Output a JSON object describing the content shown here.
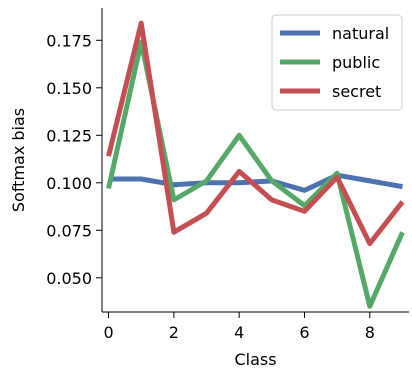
{
  "chart_data": {
    "type": "line",
    "xlabel": "Class",
    "ylabel": "Softmax bias",
    "xlim": [
      -0.2,
      9.2
    ],
    "ylim": [
      0.032,
      0.192
    ],
    "x": [
      0,
      1,
      2,
      3,
      4,
      5,
      6,
      7,
      8,
      9
    ],
    "xticks": [
      "0",
      "2",
      "4",
      "6",
      "8"
    ],
    "yticks": [
      "0.050",
      "0.075",
      "0.100",
      "0.125",
      "0.150",
      "0.175"
    ],
    "legend_position": "top-right",
    "grid": false,
    "series": [
      {
        "name": "natural",
        "color": "#4c72b0",
        "values": [
          0.102,
          0.102,
          0.099,
          0.1,
          0.1,
          0.101,
          0.096,
          0.104,
          0.101,
          0.098
        ]
      },
      {
        "name": "public",
        "color": "#55a868",
        "values": [
          0.097,
          0.174,
          0.091,
          0.101,
          0.125,
          0.101,
          0.088,
          0.105,
          0.035,
          0.074
        ]
      },
      {
        "name": "secret",
        "color": "#c44e52",
        "values": [
          0.114,
          0.184,
          0.074,
          0.084,
          0.106,
          0.091,
          0.085,
          0.103,
          0.068,
          0.09
        ]
      }
    ]
  }
}
